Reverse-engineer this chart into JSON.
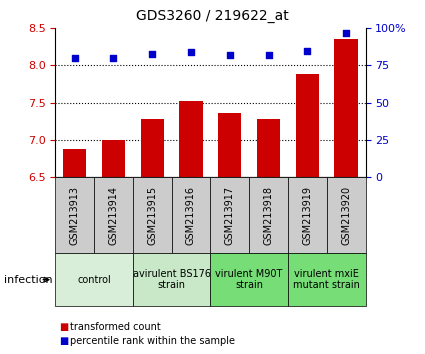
{
  "title": "GDS3260 / 219622_at",
  "samples": [
    "GSM213913",
    "GSM213914",
    "GSM213915",
    "GSM213916",
    "GSM213917",
    "GSM213918",
    "GSM213919",
    "GSM213920"
  ],
  "bar_values": [
    6.88,
    7.0,
    7.28,
    7.52,
    7.36,
    7.28,
    7.88,
    8.36
  ],
  "scatter_values": [
    80,
    80,
    83,
    84,
    82,
    82,
    85,
    97
  ],
  "ylim_left": [
    6.5,
    8.5
  ],
  "ylim_right": [
    0,
    100
  ],
  "yticks_left": [
    6.5,
    7.0,
    7.5,
    8.0,
    8.5
  ],
  "yticks_right": [
    0,
    25,
    50,
    75,
    100
  ],
  "ytick_labels_right": [
    "0",
    "25",
    "50",
    "75",
    "100%"
  ],
  "bar_color": "#cc0000",
  "scatter_color": "#0000cc",
  "bar_width": 0.6,
  "infection_label": "infection",
  "legend_bar_label": "transformed count",
  "legend_scatter_label": "percentile rank within the sample",
  "left_tick_color": "#cc0000",
  "right_tick_color": "#0000cc",
  "tick_label_bg_color": "#cccccc",
  "group_label_fontsize": 7,
  "sample_fontsize": 7,
  "group_positions": [
    {
      "start": 0,
      "end": 1,
      "label": "control",
      "color": "#d8eed8"
    },
    {
      "start": 2,
      "end": 3,
      "label": "avirulent BS176\nstrain",
      "color": "#c8e8c8"
    },
    {
      "start": 4,
      "end": 5,
      "label": "virulent M90T\nstrain",
      "color": "#77dd77"
    },
    {
      "start": 6,
      "end": 7,
      "label": "virulent mxiE\nmutant strain",
      "color": "#77dd77"
    }
  ]
}
